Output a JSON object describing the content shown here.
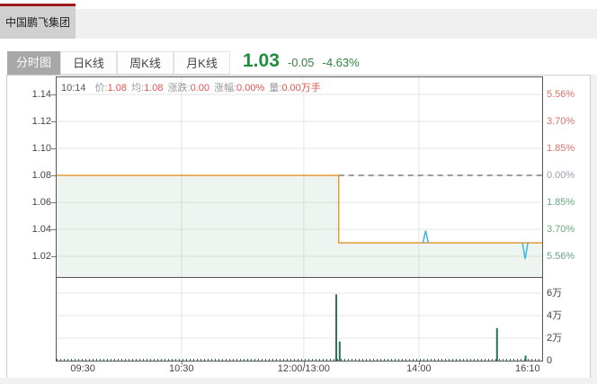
{
  "header": {
    "stock_tab": "中国鹏飞集团",
    "accent_color": "#9e1a1d"
  },
  "toolbar": {
    "tabs": [
      {
        "label": "分时图",
        "active": true
      },
      {
        "label": "日K线",
        "active": false
      },
      {
        "label": "周K线",
        "active": false
      },
      {
        "label": "月K线",
        "active": false
      }
    ],
    "quote": {
      "price": "1.03",
      "change": "-0.05",
      "change_pct": "-4.63%",
      "price_color": "#1e8e3e",
      "change_color": "#37803f"
    }
  },
  "info_line": [
    {
      "text": "10:14",
      "type": "time"
    },
    {
      "text": "价:",
      "type": "label"
    },
    {
      "text": "1.08",
      "type": "value"
    },
    {
      "text": "均:",
      "type": "label"
    },
    {
      "text": "1.08",
      "type": "value"
    },
    {
      "text": "涨跌:",
      "type": "label"
    },
    {
      "text": "0.00",
      "type": "value"
    },
    {
      "text": "涨幅:",
      "type": "label"
    },
    {
      "text": "0.00%",
      "type": "value"
    },
    {
      "text": "量:",
      "type": "label"
    },
    {
      "text": "0.00万手",
      "type": "value"
    }
  ],
  "chart_data": {
    "type": "line",
    "title": "分时图 intraday chart",
    "prev_close": 1.08,
    "last_price": 1.03,
    "price_axis": {
      "min": 1.0047,
      "max": 1.1527,
      "ticks": [
        {
          "price": "1.14",
          "value": 1.14,
          "pct": "5.56%",
          "side": "up"
        },
        {
          "price": "1.12",
          "value": 1.12,
          "pct": "3.70%",
          "side": "up"
        },
        {
          "price": "1.10",
          "value": 1.1,
          "pct": "1.85%",
          "side": "up"
        },
        {
          "price": "1.08",
          "value": 1.08,
          "pct": "0.00%",
          "side": "flat"
        },
        {
          "price": "1.06",
          "value": 1.06,
          "pct": "1.85%",
          "side": "down"
        },
        {
          "price": "1.04",
          "value": 1.04,
          "pct": "3.70%",
          "side": "down"
        },
        {
          "price": "1.02",
          "value": 1.02,
          "pct": "5.56%",
          "side": "down"
        }
      ]
    },
    "pct_colors": {
      "up": "#d9706a",
      "flat": "#9aa0a6",
      "down": "#68a57f"
    },
    "x_axis": {
      "labels": [
        {
          "text": "09:30",
          "pct": 5.4
        },
        {
          "text": "10:30",
          "pct": 25.7
        },
        {
          "text": "12:00/13:00",
          "pct": 50.9
        },
        {
          "text": "14:00",
          "pct": 74.6
        },
        {
          "text": "16:10",
          "pct": 97.0
        }
      ],
      "grid_pct": [
        25.7,
        50.9,
        74.6
      ]
    },
    "price_series": [
      [
        0,
        1.08
      ],
      [
        0.581,
        1.08
      ],
      [
        0.581,
        1.03
      ],
      [
        1,
        1.03
      ]
    ],
    "spikes": [
      {
        "x": 0.76,
        "base": 1.03,
        "peak": 1.039
      },
      {
        "x": 0.965,
        "base": 1.03,
        "peak": 1.018
      }
    ],
    "prev_close_dash_from": 0.581,
    "volume_axis": {
      "max": 7.36,
      "unit": "万",
      "ticks": [
        {
          "label": "6万",
          "value": 6
        },
        {
          "label": "4万",
          "value": 4
        },
        {
          "label": "2万",
          "value": 2
        },
        {
          "label": "0",
          "value": 0
        }
      ]
    },
    "volume_bars": [
      {
        "x": 0.576,
        "value": 5.9
      },
      {
        "x": 0.583,
        "value": 1.7
      },
      {
        "x": 0.907,
        "value": 2.9
      },
      {
        "x": 0.966,
        "value": 0.45
      }
    ],
    "colors": {
      "price_line": "#e09b33",
      "spike_line": "#3fb3e3",
      "fill": "rgba(121,180,138,0.13)",
      "volume_bar": "#2a7258",
      "dash": "#3a3a3a",
      "grid": "#e3e6e3"
    }
  }
}
